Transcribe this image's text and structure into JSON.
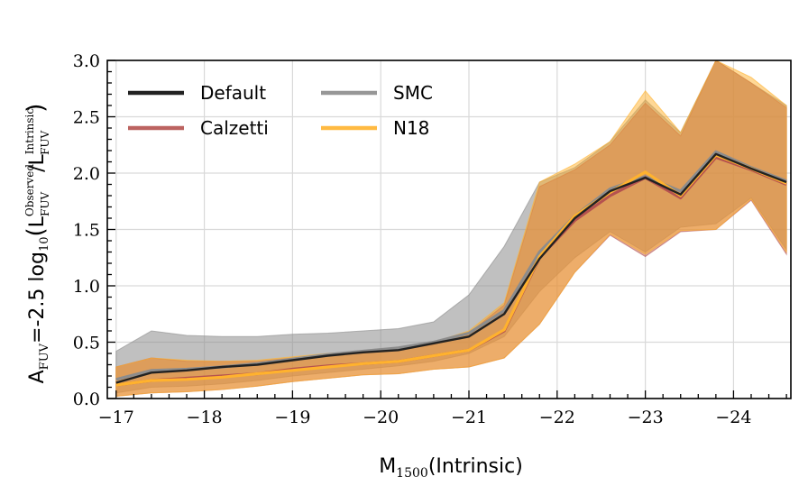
{
  "chart_data": {
    "type": "line",
    "xlabel": "M_1500(Intrinsic)",
    "xlabel_parts": {
      "main": "M",
      "sub": "1500",
      "rest": "(Intrinsic)"
    },
    "ylabel": "A_FUV=-2.5 log10(L_FUV^Observed / L_FUV^Intrinsic)",
    "ylabel_parts": {
      "a": "A",
      "a_sub": "FUV",
      "eq": "=-2.5 log",
      "log_sub": "10",
      "lparen": "(",
      "l1": "L",
      "l1_sup": "Observed",
      "l1_sub": "FUV",
      "slash": "/",
      "l2": "L",
      "l2_sup": "Intrinsic",
      "l2_sub": "FUV",
      "rparen": ")"
    },
    "xlim": [
      -16.9,
      -24.65
    ],
    "ylim": [
      0,
      3.0
    ],
    "x_ticks": [
      -17,
      -18,
      -19,
      -20,
      -21,
      -22,
      -23,
      -24
    ],
    "x_tick_labels": [
      "−17",
      "−18",
      "−19",
      "−20",
      "−21",
      "−22",
      "−23",
      "−24"
    ],
    "y_ticks": [
      0,
      0.5,
      1.0,
      1.5,
      2.0,
      2.5,
      3.0
    ],
    "y_tick_labels": [
      "0.0",
      "0.5",
      "1.0",
      "1.5",
      "2.0",
      "2.5",
      "3.0"
    ],
    "grid": true,
    "legend_position": "top-left",
    "x": [
      -17.0,
      -17.4,
      -17.8,
      -18.2,
      -18.6,
      -19.0,
      -19.4,
      -19.8,
      -20.2,
      -20.6,
      -21.0,
      -21.4,
      -21.8,
      -22.2,
      -22.6,
      -23.0,
      -23.4,
      -23.8,
      -24.2,
      -24.6
    ],
    "series": [
      {
        "name": "SMC",
        "color": "#8c8c8c",
        "values": [
          0.17,
          0.25,
          0.26,
          0.28,
          0.31,
          0.35,
          0.39,
          0.42,
          0.45,
          0.5,
          0.58,
          0.78,
          1.3,
          1.62,
          1.86,
          1.97,
          1.84,
          2.19,
          2.05,
          1.93
        ],
        "lower": [
          0.05,
          0.1,
          0.11,
          0.13,
          0.16,
          0.2,
          0.23,
          0.26,
          0.29,
          0.33,
          0.4,
          0.55,
          0.95,
          1.25,
          1.48,
          1.3,
          1.52,
          1.55,
          1.78,
          1.32
        ],
        "upper": [
          0.42,
          0.6,
          0.56,
          0.55,
          0.55,
          0.57,
          0.58,
          0.6,
          0.62,
          0.68,
          0.92,
          1.35,
          1.92,
          2.05,
          2.28,
          2.65,
          2.36,
          3.03,
          2.8,
          2.6
        ]
      },
      {
        "name": "Calzetti",
        "color": "#b5524f",
        "values": [
          0.12,
          0.16,
          0.18,
          0.2,
          0.22,
          0.26,
          0.29,
          0.31,
          0.33,
          0.38,
          0.43,
          0.6,
          1.25,
          1.58,
          1.8,
          1.96,
          1.78,
          2.14,
          2.03,
          1.9
        ],
        "lower": [
          0.02,
          0.05,
          0.06,
          0.08,
          0.11,
          0.15,
          0.18,
          0.21,
          0.22,
          0.26,
          0.28,
          0.36,
          0.66,
          1.12,
          1.45,
          1.26,
          1.48,
          1.5,
          1.76,
          1.28
        ],
        "upper": [
          0.28,
          0.36,
          0.33,
          0.33,
          0.33,
          0.36,
          0.39,
          0.42,
          0.43,
          0.48,
          0.58,
          0.83,
          1.88,
          2.03,
          2.25,
          2.62,
          2.33,
          3.03,
          2.8,
          2.58
        ]
      },
      {
        "name": "N18",
        "color": "#ffb22e",
        "values": [
          0.12,
          0.16,
          0.17,
          0.19,
          0.22,
          0.25,
          0.28,
          0.31,
          0.33,
          0.38,
          0.43,
          0.61,
          1.26,
          1.62,
          1.83,
          2.01,
          1.8,
          2.16,
          2.04,
          1.91
        ],
        "lower": [
          0.02,
          0.05,
          0.06,
          0.08,
          0.11,
          0.15,
          0.18,
          0.21,
          0.22,
          0.26,
          0.28,
          0.36,
          0.66,
          1.12,
          1.46,
          1.28,
          1.49,
          1.5,
          1.77,
          1.3
        ],
        "upper": [
          0.28,
          0.36,
          0.34,
          0.33,
          0.34,
          0.37,
          0.4,
          0.42,
          0.44,
          0.5,
          0.6,
          0.85,
          1.92,
          2.08,
          2.28,
          2.73,
          2.36,
          3.08,
          2.85,
          2.6
        ]
      },
      {
        "name": "Default",
        "color": "#222222",
        "values": [
          0.14,
          0.23,
          0.25,
          0.28,
          0.3,
          0.34,
          0.38,
          0.41,
          0.43,
          0.49,
          0.55,
          0.75,
          1.24,
          1.6,
          1.84,
          1.96,
          1.81,
          2.17,
          2.04,
          1.92
        ]
      }
    ],
    "legend": [
      {
        "name": "Default",
        "color": "#222222"
      },
      {
        "name": "SMC",
        "color": "#8c8c8c"
      },
      {
        "name": "Calzetti",
        "color": "#b5524f"
      },
      {
        "name": "N18",
        "color": "#ffb22e"
      }
    ]
  }
}
